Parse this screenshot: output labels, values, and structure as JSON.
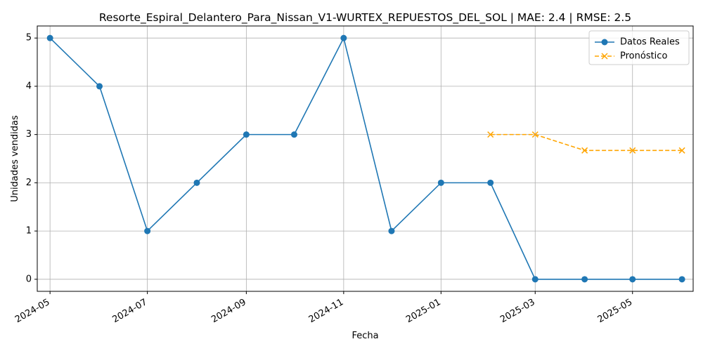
{
  "chart_data": {
    "type": "line",
    "title": "Resorte_Espiral_Delantero_Para_Nissan_V1-WURTEX_REPUESTOS_DEL_SOL | MAE: 2.4 | RMSE: 2.5",
    "xlabel": "Fecha",
    "ylabel": "Unidades vendidas",
    "x_tick_labels": [
      "2024-05",
      "2024-07",
      "2024-09",
      "2024-11",
      "2025-01",
      "2025-03",
      "2025-05"
    ],
    "y_tick_labels": [
      "0",
      "1",
      "2",
      "3",
      "4",
      "5"
    ],
    "ylim": [
      -0.25,
      5.25
    ],
    "xlim": [
      "2024-04-23",
      "2025-06-08"
    ],
    "grid": true,
    "legend_position": "top-right",
    "series": [
      {
        "name": "Datos Reales",
        "style": "solid",
        "marker": "circle",
        "color": "#1f77b4",
        "x": [
          "2024-05-01",
          "2024-06-01",
          "2024-07-01",
          "2024-08-01",
          "2024-09-01",
          "2024-10-01",
          "2024-11-01",
          "2024-12-01",
          "2025-01-01",
          "2025-02-01",
          "2025-03-01",
          "2025-04-01",
          "2025-05-01",
          "2025-06-01"
        ],
        "y": [
          5,
          4,
          1,
          2,
          3,
          3,
          5,
          1,
          2,
          2,
          0,
          0,
          0,
          0
        ]
      },
      {
        "name": "Pronóstico",
        "style": "dashed",
        "marker": "x",
        "color": "#ffa500",
        "x": [
          "2025-02-01",
          "2025-03-01",
          "2025-04-01",
          "2025-05-01",
          "2025-06-01"
        ],
        "y": [
          3,
          3,
          2.67,
          2.67,
          2.67
        ]
      }
    ]
  }
}
